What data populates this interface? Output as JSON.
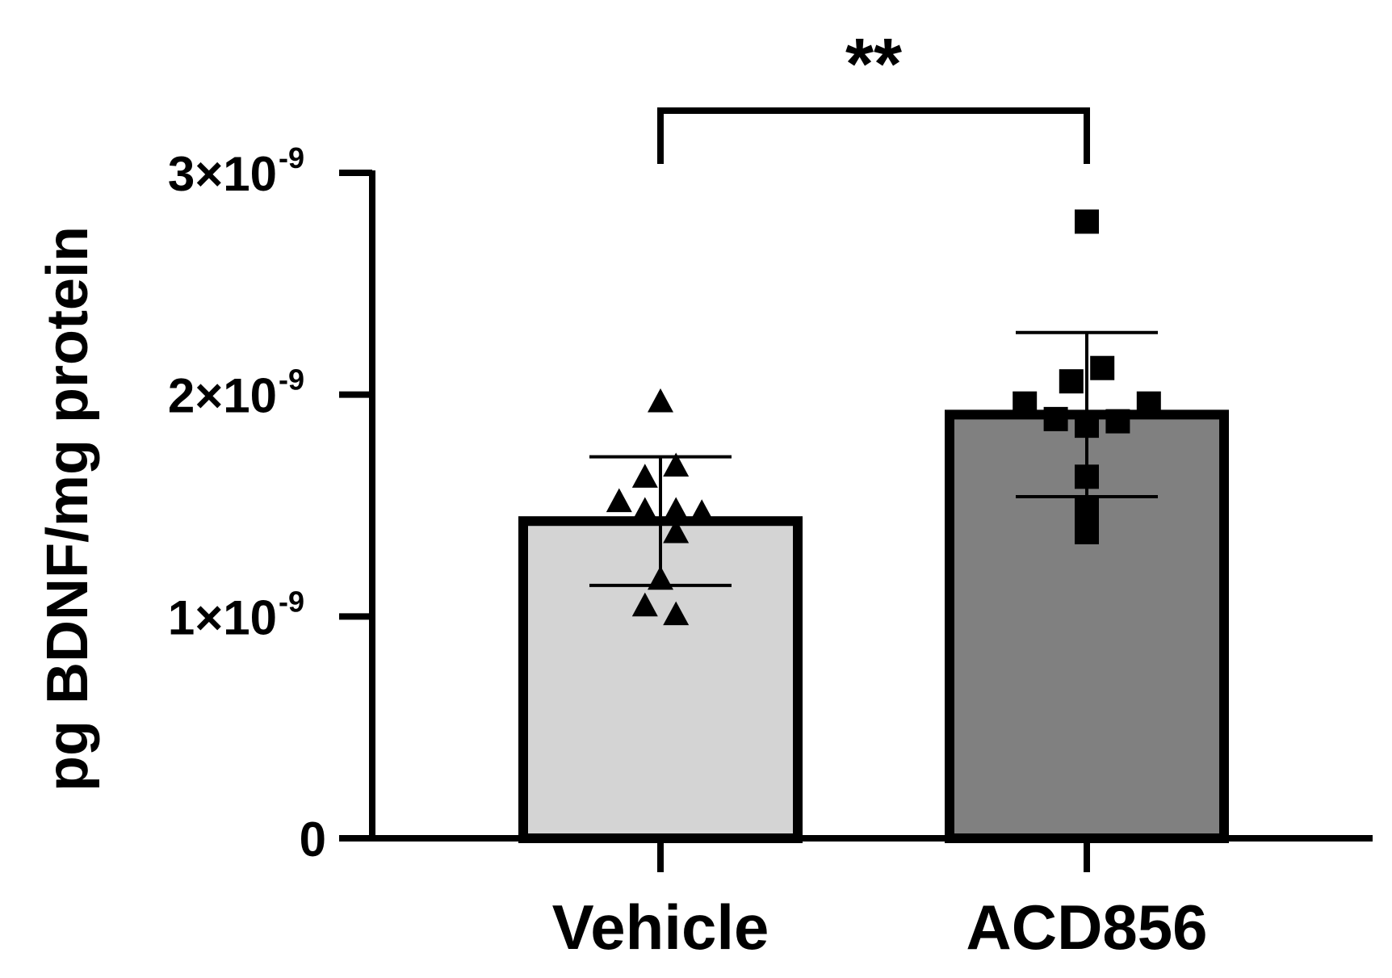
{
  "chart_data": {
    "type": "bar",
    "title": "",
    "xlabel": "",
    "ylabel": "pg  BDNF/mg protein",
    "ylim": [
      0,
      3e-09
    ],
    "yticks": [
      {
        "value": 0,
        "base": "0",
        "exp": ""
      },
      {
        "value": 1e-09,
        "base": "1×10",
        "exp": "-9"
      },
      {
        "value": 2e-09,
        "base": "2×10",
        "exp": "-9"
      },
      {
        "value": 3e-09,
        "base": "3×10",
        "exp": "-9"
      }
    ],
    "categories": [
      "Vehicle",
      "ACD856"
    ],
    "values": [
      1.43e-09,
      1.91e-09
    ],
    "error": [
      2.9e-10,
      3.7e-10
    ],
    "colors": [
      "#d4d4d4",
      "#808080"
    ],
    "markers": [
      "triangle",
      "square"
    ],
    "points": [
      [
        1.97e-09,
        1.68e-09,
        1.63e-09,
        1.52e-09,
        1.48e-09,
        1.48e-09,
        1.47e-09,
        1.38e-09,
        1.17e-09,
        1.05e-09,
        1.01e-09
      ],
      [
        2.78e-09,
        2.12e-09,
        2.06e-09,
        1.96e-09,
        1.96e-09,
        1.89e-09,
        1.88e-09,
        1.86e-09,
        1.63e-09,
        1.48e-09,
        1.38e-09
      ]
    ],
    "points_offset_units": [
      [
        0,
        0.3,
        -0.3,
        -0.8,
        -0.3,
        0.3,
        0.8,
        0.3,
        0,
        -0.3,
        0.3
      ],
      [
        0,
        0.3,
        -0.3,
        -1.2,
        1.2,
        -0.6,
        0.6,
        0,
        0,
        0,
        0
      ]
    ],
    "significance": {
      "label": "**",
      "from": 0,
      "to": 1
    }
  }
}
